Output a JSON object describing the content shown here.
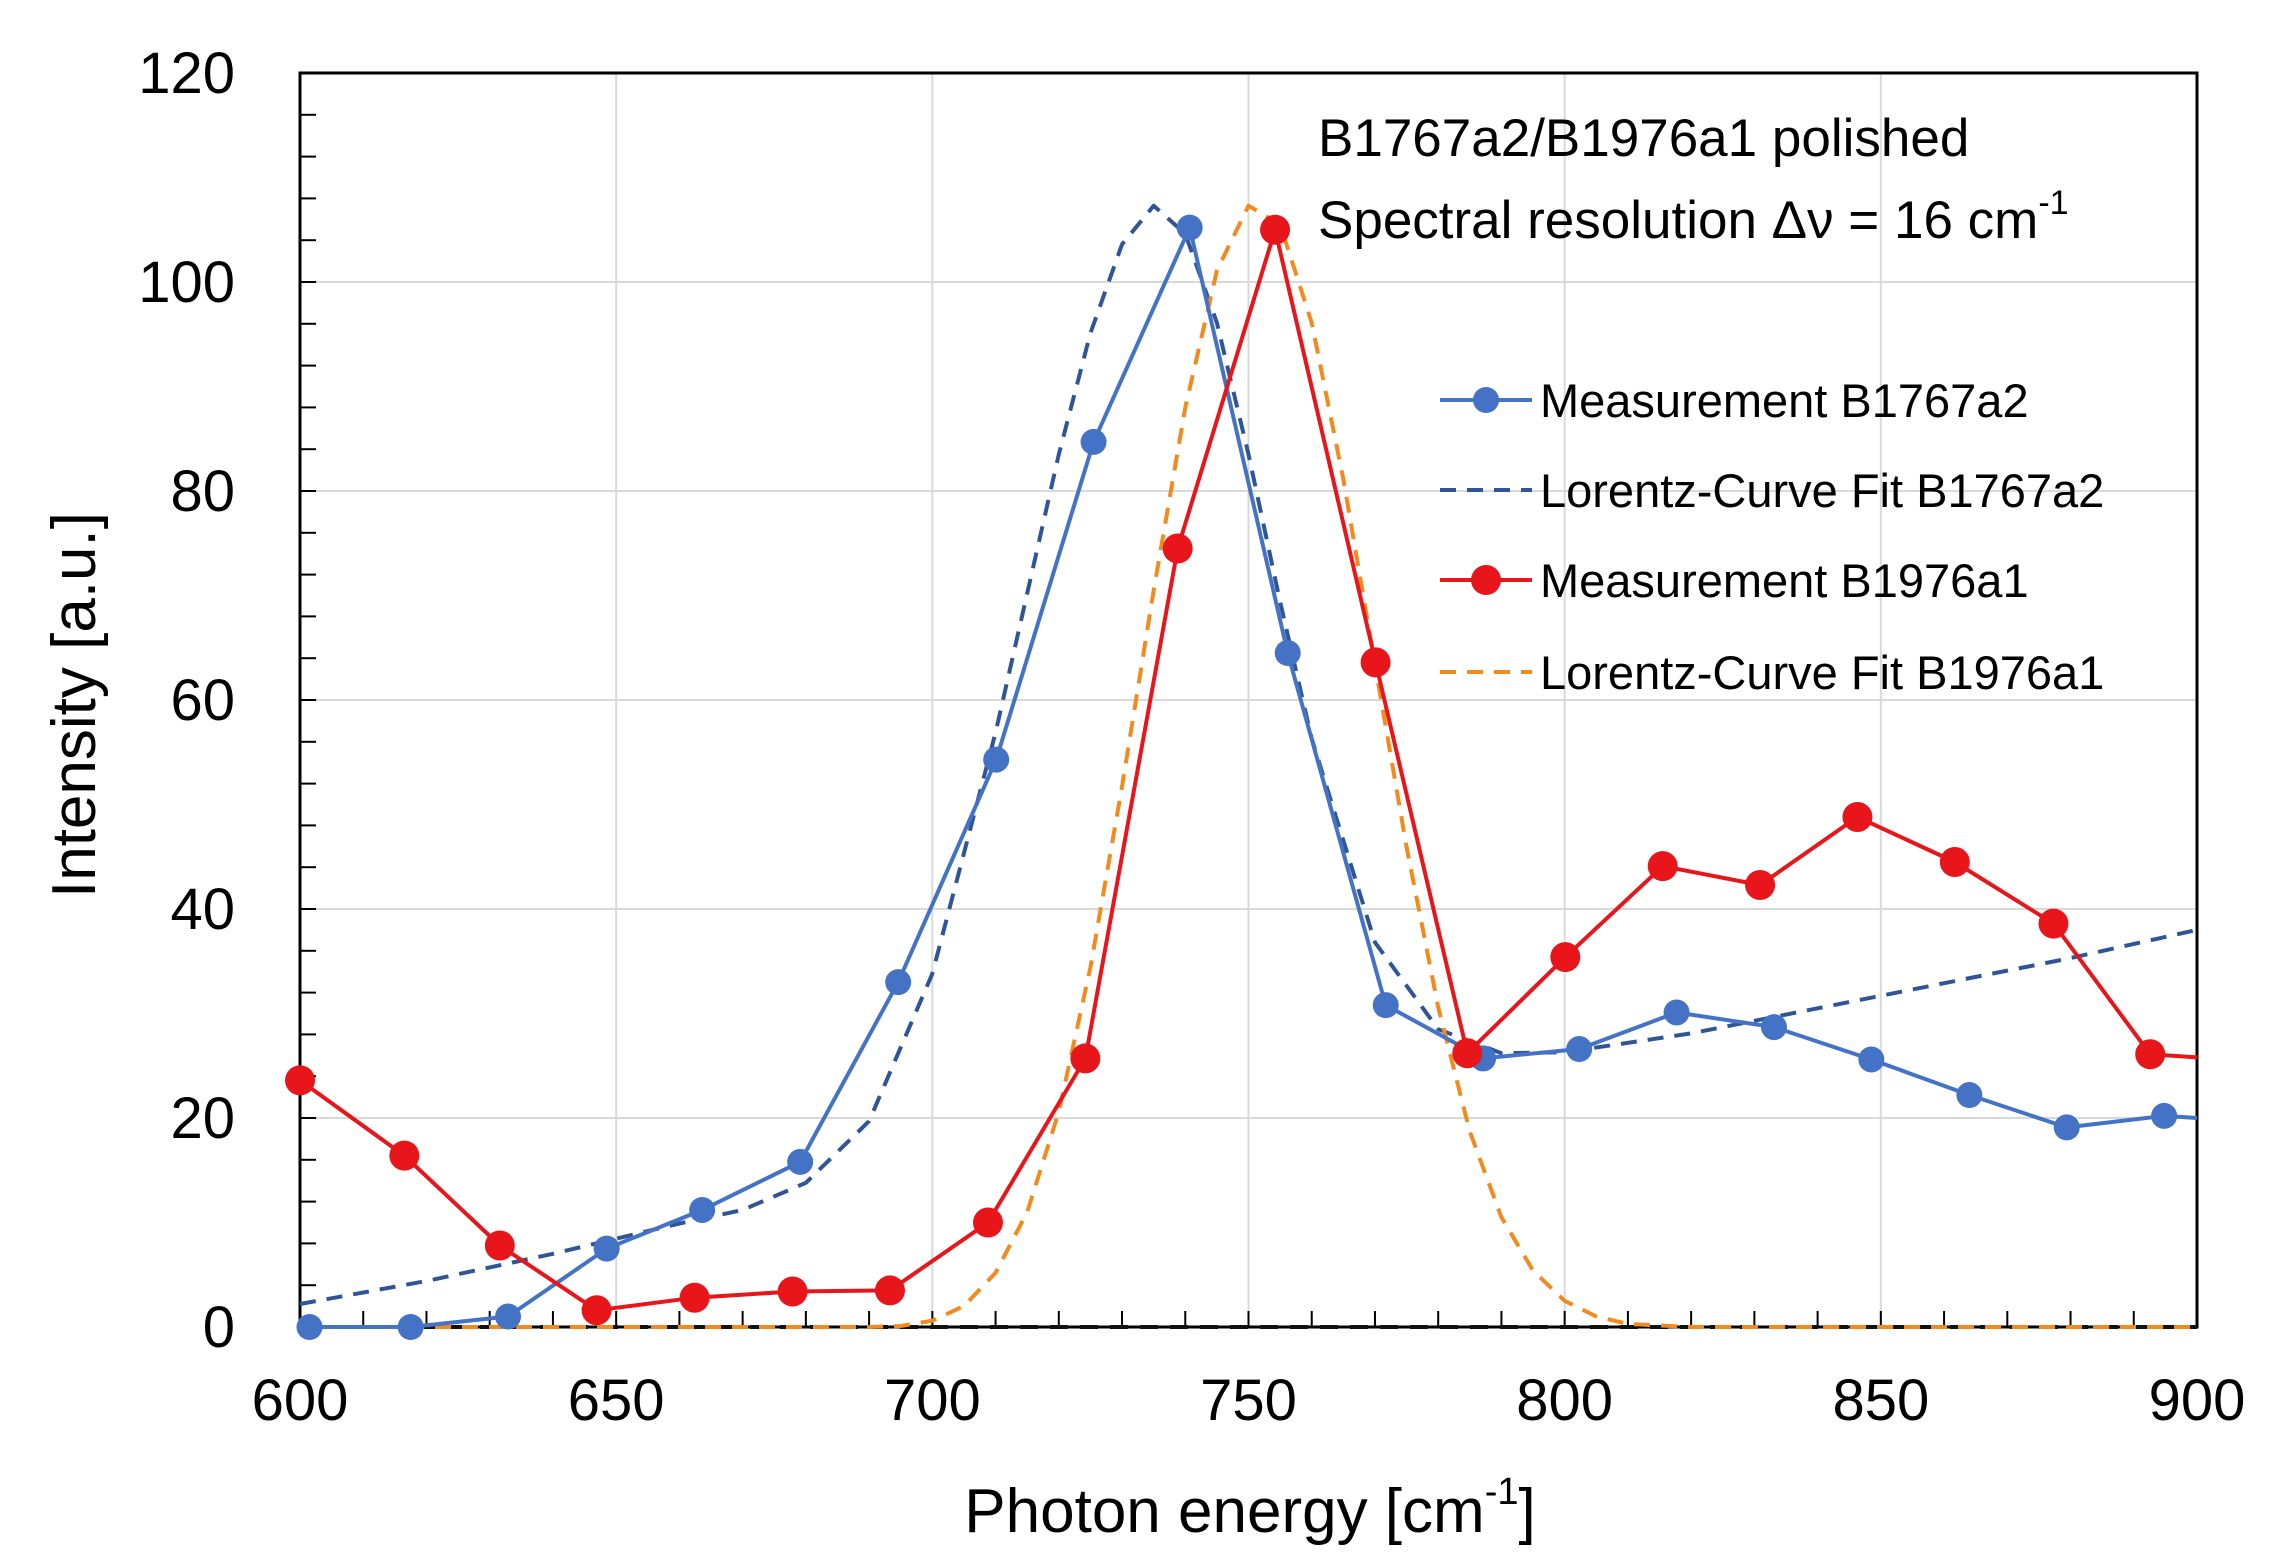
{
  "chart_data": {
    "type": "line",
    "title": "",
    "xlabel": "Photon energy [cm",
    "xlabel_sup": "-1",
    "xlabel_suffix": "]",
    "ylabel": "Intensity [a.u.]",
    "xlim": [
      600,
      900
    ],
    "ylim": [
      0,
      120
    ],
    "xticks": [
      600,
      650,
      700,
      750,
      800,
      850,
      900
    ],
    "yticks": [
      0,
      20,
      40,
      60,
      80,
      100,
      120
    ],
    "grid": true,
    "legend_position": "right",
    "annotations": {
      "line1": "B1767a2/B1976a1 polished",
      "line2": "Spectral resolution Δν = 16 cm",
      "line2_sup": "-1"
    },
    "series": [
      {
        "name": "Measurement B1767a2",
        "color": "#4472C4",
        "style": "solid-markers",
        "x": [
          601.5,
          617.5,
          632.9,
          648.5,
          663.6,
          679.1,
          694.6,
          710.1,
          725.5,
          740.7,
          756.2,
          771.7,
          787.1,
          802.3,
          817.7,
          833.1,
          848.5,
          864.0,
          879.4,
          894.8,
          900
        ],
        "y": [
          0,
          0,
          1,
          7.5,
          11.2,
          15.8,
          33,
          54.3,
          84.7,
          105.2,
          64.5,
          30.8,
          25.7,
          26.6,
          30.1,
          28.7,
          25.6,
          22.2,
          19.1,
          20.2,
          20.0
        ]
      },
      {
        "name": "Lorentz-Curve Fit B1767a2",
        "color": "#2F5597",
        "style": "dashed",
        "x": [
          600,
          620,
          640,
          660,
          670,
          680,
          690,
          700,
          710,
          720,
          725,
          730,
          735,
          740,
          745,
          750,
          755,
          760,
          770,
          780,
          790,
          800,
          820,
          840,
          860,
          880,
          900
        ],
        "y": [
          2.2,
          4.4,
          7.0,
          9.9,
          11.2,
          13.8,
          19.7,
          33.8,
          56.9,
          83.5,
          95.1,
          103.6,
          107.3,
          104.6,
          96.1,
          83.5,
          69.4,
          56.3,
          36.8,
          28.5,
          26.2,
          26.3,
          28.1,
          30.5,
          32.9,
          35.3,
          38.0
        ]
      },
      {
        "name": "Measurement B1976a1",
        "color": "#E8151B",
        "style": "solid-markers",
        "x": [
          600,
          616.5,
          631.6,
          646.9,
          662.4,
          677.9,
          693.3,
          708.8,
          724.2,
          738.8,
          754.2,
          770.1,
          784.6,
          800.1,
          815.5,
          830.9,
          846.3,
          861.7,
          877.3,
          892.6,
          900
        ],
        "y": [
          23.6,
          16.4,
          7.8,
          1.6,
          2.8,
          3.4,
          3.5,
          10.0,
          25.7,
          74.5,
          105.0,
          63.6,
          26.2,
          35.4,
          44.1,
          42.3,
          48.8,
          44.5,
          38.6,
          26.1,
          25.8
        ]
      },
      {
        "name": "Lorentz-Curve Fit B1976a1",
        "color": "#F28A1E",
        "style": "dashed",
        "x": [
          600,
          680,
          690,
          695,
          700,
          705,
          710,
          715,
          720,
          725,
          730,
          735,
          740,
          745,
          750,
          755,
          760,
          765,
          770,
          775,
          780,
          785,
          790,
          795,
          800,
          805,
          810,
          820,
          900
        ],
        "y": [
          0,
          0,
          0,
          0.1,
          0.6,
          2.0,
          5.2,
          11.0,
          20.6,
          34.4,
          51.7,
          70.5,
          88.0,
          101.1,
          107.3,
          105.5,
          96.1,
          81.1,
          63.4,
          45.9,
          30.6,
          18.7,
          10.5,
          5.4,
          2.5,
          1.0,
          0.3,
          0,
          0
        ]
      }
    ],
    "baseline": {
      "color": "#111111",
      "y": 0
    }
  }
}
